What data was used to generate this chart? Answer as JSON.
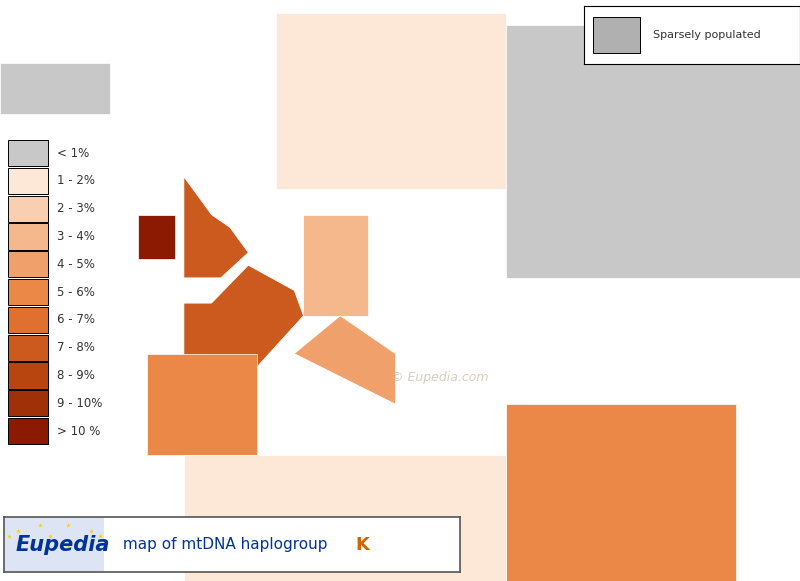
{
  "title": "Eupedia map of mtDNA haplogroup K",
  "legend_labels": [
    "< 1%",
    "1 - 2%",
    "2 - 3%",
    "3 - 4%",
    "4 - 5%",
    "5 - 6%",
    "6 - 7%",
    "7 - 8%",
    "8 - 9%",
    "9 - 10%",
    "> 10 %"
  ],
  "legend_colors": [
    "#c8c8c8",
    "#fde8d8",
    "#f9cfb2",
    "#f5b88d",
    "#f0a06a",
    "#eb8847",
    "#e06f30",
    "#cc5a1e",
    "#b84510",
    "#a03008",
    "#8b1a00"
  ],
  "sparsely_populated_color": "#b0b0b0",
  "background_color": "#ffffff",
  "border_color": "#000000",
  "map_bg": "#e8f4f8",
  "eupedia_blue": "#003399",
  "eupedia_orange": "#cc6600",
  "eupedia_box_bg": "#dde5f5",
  "watermark_color": "#c8b8a0",
  "figwidth": 8.0,
  "figheight": 5.81
}
